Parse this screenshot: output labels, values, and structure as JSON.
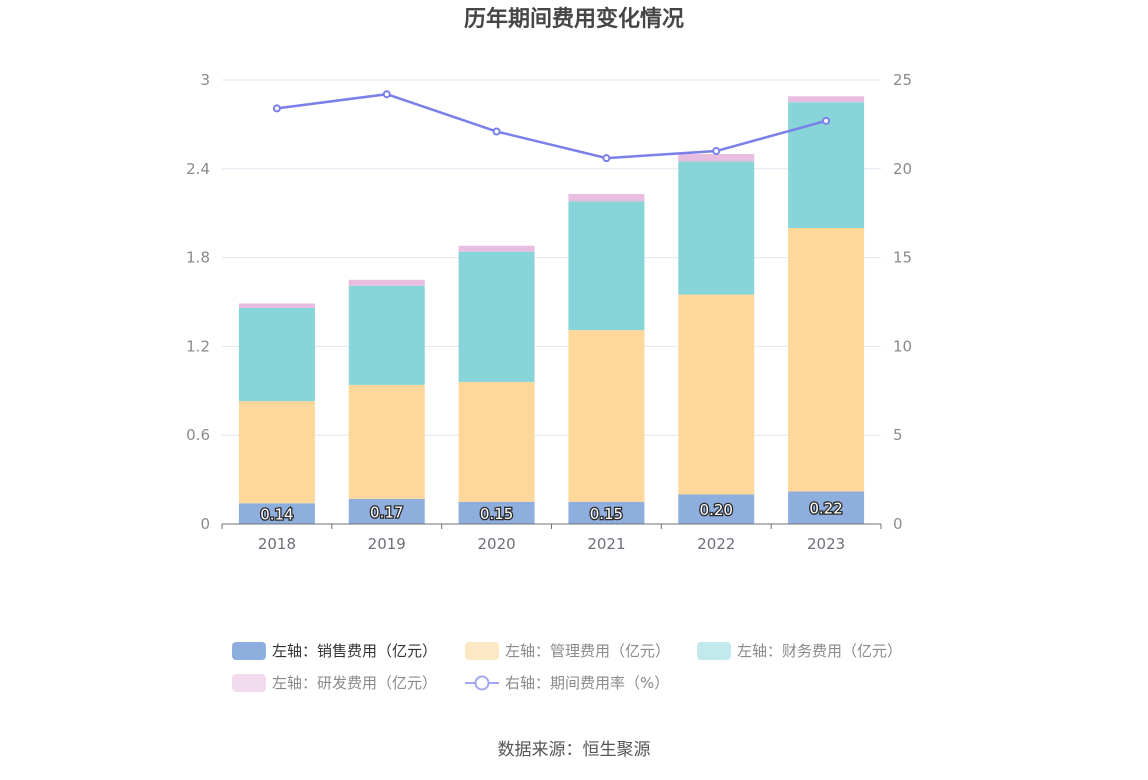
{
  "chart_data": {
    "type": "bar",
    "title": "历年期间费用变化情况",
    "categories": [
      "2018",
      "2019",
      "2020",
      "2021",
      "2022",
      "2023"
    ],
    "stacked": true,
    "left_axis": {
      "min": 0,
      "max": 3,
      "ticks": [
        "0",
        "0.6",
        "1.2",
        "1.8",
        "2.4",
        "3"
      ]
    },
    "right_axis": {
      "min": 0,
      "max": 25,
      "ticks": [
        "0",
        "5",
        "10",
        "15",
        "20",
        "25"
      ]
    },
    "grid": true,
    "legend_position": "bottom",
    "series": [
      {
        "name": "左轴：销售费用（亿元）",
        "type": "bar",
        "axis": "left",
        "color": "#8eaedd",
        "values": [
          0.14,
          0.17,
          0.15,
          0.15,
          0.2,
          0.22
        ],
        "labels": [
          "0.14",
          "0.17",
          "0.15",
          "0.15",
          "0.20",
          "0.22"
        ]
      },
      {
        "name": "左轴：管理费用（亿元）",
        "type": "bar",
        "axis": "left",
        "color": "#fed89b",
        "values": [
          0.69,
          0.77,
          0.81,
          1.16,
          1.35,
          1.78
        ]
      },
      {
        "name": "左轴：财务费用（亿元）",
        "type": "bar",
        "axis": "left",
        "color": "#88d5d9",
        "values": [
          0.63,
          0.67,
          0.88,
          0.87,
          0.9,
          0.85
        ]
      },
      {
        "name": "左轴：研发费用（亿元）",
        "type": "bar",
        "axis": "left",
        "color": "#e7bde0",
        "values": [
          0.03,
          0.04,
          0.04,
          0.05,
          0.05,
          0.04
        ]
      },
      {
        "name": "右轴：期间费用率（%）",
        "type": "line",
        "axis": "right",
        "color": "#7a7fea",
        "values": [
          23.4,
          24.2,
          22.1,
          20.6,
          21.0,
          22.7
        ]
      }
    ]
  },
  "legend_colors": {
    "sales": "#8eaedd",
    "admin": "#fde8c6",
    "finance": "#c2e9eb",
    "rd": "#f3dbef",
    "rate": "#a3a7f0"
  },
  "source_text": "数据来源：恒生聚源"
}
